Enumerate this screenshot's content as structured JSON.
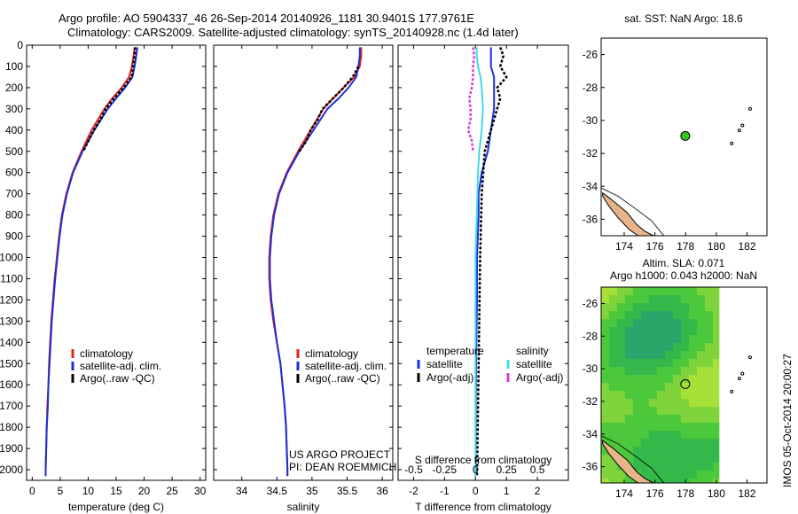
{
  "header": {
    "line1": "Argo profile: AO 5904337_46 26-Sep-2014 20140926_1181 30.9401S 177.9761E",
    "line2": "Climatology: CARS2009. Satellite-adjusted climatology: synTS_20140928.nc (1.4d later)"
  },
  "colors": {
    "climatology": "#e8231a",
    "satellite": "#1b2fd6",
    "argo": "#000000",
    "salinity_satellite": "#3fd9e6",
    "salinity_argo": "#d93ad9",
    "float_marker": "#35c41e",
    "land": "#e8b48a"
  },
  "chart_data": [
    {
      "id": "temperature",
      "type": "line",
      "xlabel": "temperature (deg C)",
      "ylim": [
        2050,
        0
      ],
      "xlim": [
        -1,
        31
      ],
      "xticks": [
        0,
        5,
        10,
        15,
        20,
        25,
        30
      ],
      "yticks": [
        0,
        100,
        200,
        300,
        400,
        500,
        600,
        700,
        800,
        900,
        1000,
        1100,
        1200,
        1300,
        1400,
        1500,
        1600,
        1700,
        1800,
        1900,
        2000
      ],
      "legend": [
        "climatology",
        "satellite-adj. clim.",
        "Argo(..raw -QC)"
      ],
      "series": [
        {
          "name": "climatology",
          "depth": [
            10,
            50,
            100,
            150,
            200,
            250,
            300,
            400,
            500,
            600,
            700,
            800,
            900,
            1000,
            1100,
            1200,
            1300,
            1400,
            1500,
            1600,
            1700,
            1800,
            1900,
            2000,
            2030
          ],
          "values": [
            18.3,
            18.1,
            17.8,
            17.3,
            16.0,
            14.3,
            12.9,
            10.6,
            8.8,
            7.2,
            6.1,
            5.3,
            4.8,
            4.4,
            4.0,
            3.7,
            3.4,
            3.2,
            3.0,
            2.9,
            2.7,
            2.6,
            2.5,
            2.4,
            2.4
          ]
        },
        {
          "name": "satellite-adj. clim.",
          "depth": [
            10,
            50,
            100,
            150,
            200,
            250,
            300,
            400,
            500,
            600,
            700,
            800,
            900,
            1000,
            1100,
            1200,
            1300,
            1400,
            1500,
            1600,
            1700,
            1800,
            1900,
            2000,
            2030
          ],
          "values": [
            18.8,
            18.6,
            18.3,
            17.9,
            16.6,
            15.0,
            13.5,
            11.1,
            9.0,
            7.3,
            6.2,
            5.4,
            4.9,
            4.5,
            4.1,
            3.8,
            3.5,
            3.3,
            3.1,
            2.9,
            2.8,
            2.6,
            2.5,
            2.4,
            2.4
          ]
        },
        {
          "name": "Argo(..raw -QC)",
          "depth": [
            10,
            50,
            100,
            150,
            200,
            250,
            300,
            350,
            400,
            500
          ],
          "values": [
            18.4,
            18.3,
            18.0,
            17.8,
            16.3,
            14.6,
            13.1,
            12.2,
            11.0,
            9.1
          ]
        }
      ]
    },
    {
      "id": "salinity",
      "type": "line",
      "xlabel": "salinity",
      "ylim": [
        2050,
        0
      ],
      "xlim": [
        33.6,
        36.15
      ],
      "xticks": [
        34,
        34.5,
        35,
        35.5,
        36
      ],
      "legend": [
        "climatology",
        "satellite-adj. clim.",
        "Argo(..raw -QC)"
      ],
      "annotation": [
        "US ARGO PROJECT",
        "PI: DEAN ROEMMICH"
      ],
      "series": [
        {
          "name": "climatology",
          "depth": [
            10,
            50,
            100,
            150,
            200,
            250,
            300,
            400,
            500,
            600,
            700,
            800,
            900,
            1000,
            1100,
            1200,
            1300,
            1400,
            1500,
            1600,
            1700,
            1800,
            1900,
            2000,
            2030
          ],
          "values": [
            35.7,
            35.7,
            35.68,
            35.6,
            35.45,
            35.3,
            35.16,
            34.98,
            34.8,
            34.64,
            34.52,
            34.45,
            34.41,
            34.39,
            34.39,
            34.41,
            34.45,
            34.5,
            34.55,
            34.58,
            34.61,
            34.63,
            34.64,
            34.65,
            34.65
          ]
        },
        {
          "name": "satellite-adj. clim.",
          "depth": [
            10,
            50,
            100,
            150,
            200,
            250,
            300,
            400,
            500,
            600,
            700,
            800,
            900,
            1000,
            1100,
            1200,
            1300,
            1400,
            1500,
            1600,
            1700,
            1800,
            1900,
            2000,
            2030
          ],
          "values": [
            35.68,
            35.68,
            35.66,
            35.63,
            35.52,
            35.38,
            35.22,
            35.02,
            34.82,
            34.65,
            34.53,
            34.46,
            34.42,
            34.4,
            34.4,
            34.42,
            34.46,
            34.5,
            34.55,
            34.58,
            34.61,
            34.63,
            34.64,
            34.65,
            34.65
          ]
        },
        {
          "name": "Argo(..raw -QC)",
          "depth": [
            100,
            150,
            200,
            250,
            300,
            350,
            400,
            450,
            500
          ],
          "values": [
            35.66,
            35.58,
            35.45,
            35.3,
            35.15,
            35.08,
            34.98,
            34.92,
            34.82
          ]
        }
      ]
    },
    {
      "id": "difference",
      "type": "line",
      "xlabel": "T difference from climatology",
      "xlabel_top": "S difference from climatology",
      "ylim": [
        2050,
        0
      ],
      "xlim": [
        -2.5,
        3
      ],
      "xticks": [
        -2,
        -1,
        0,
        1,
        2
      ],
      "xticks_top": [
        "-0.5",
        "-0.25",
        "0",
        "0.25",
        "0.5"
      ],
      "legend_temperature": {
        "title": "temperature",
        "items": [
          "satellite",
          "Argo(-adj)"
        ]
      },
      "legend_salinity": {
        "title": "salinity",
        "items": [
          "satellite",
          "Argo(-adj)"
        ]
      },
      "series": [
        {
          "name": "temperature satellite",
          "depth": [
            10,
            50,
            100,
            150,
            200,
            300,
            400,
            500,
            600,
            700,
            800,
            1000,
            1200,
            1500,
            2030
          ],
          "values": [
            0.5,
            0.5,
            0.5,
            0.6,
            0.6,
            0.6,
            0.5,
            0.4,
            0.2,
            0.1,
            0.1,
            0.05,
            0.05,
            0.02,
            0.0
          ]
        },
        {
          "name": "temperature Argo(-adj)",
          "depth": [
            10,
            50,
            100,
            150,
            200,
            250,
            300,
            350,
            400,
            500,
            700,
            1000,
            1500,
            2030
          ],
          "values": [
            0.8,
            0.9,
            0.8,
            1.0,
            0.7,
            0.8,
            0.7,
            0.6,
            0.5,
            0.3,
            0.2,
            0.15,
            0.1,
            0.05
          ]
        },
        {
          "name": "salinity satellite",
          "depth": [
            10,
            50,
            100,
            150,
            200,
            300,
            400,
            500,
            600,
            800,
            1000,
            1500,
            2030
          ],
          "values": [
            0.01,
            0.01,
            0.02,
            0.04,
            0.05,
            0.06,
            0.05,
            0.03,
            0.02,
            0.01,
            0.0,
            0.0,
            0.0
          ]
        },
        {
          "name": "salinity Argo(-adj)",
          "depth": [
            10,
            50,
            100,
            150,
            200,
            250,
            300,
            350,
            400,
            450,
            500
          ],
          "values": [
            -0.02,
            -0.01,
            -0.02,
            -0.02,
            -0.03,
            -0.05,
            -0.04,
            -0.04,
            -0.06,
            -0.03,
            -0.02
          ]
        }
      ]
    },
    {
      "id": "sst_map",
      "type": "scatter",
      "title": "sat. SST: NaN Argo: 18.6",
      "xlim": [
        172.5,
        183.3
      ],
      "ylim": [
        -37,
        -25
      ],
      "xticks": [
        174,
        176,
        178,
        180,
        182
      ],
      "yticks": [
        -26,
        -28,
        -30,
        -32,
        -34,
        -36
      ],
      "float_position": {
        "lon": 177.98,
        "lat": -30.94
      }
    },
    {
      "id": "sla_map",
      "type": "heatmap",
      "title_line1": "Altim. SLA: 0.071",
      "title_line2": "Argo h1000: 0.043 h2000: NaN",
      "xlim": [
        172.5,
        183.3
      ],
      "ylim": [
        -37,
        -25
      ],
      "xticks": [
        174,
        176,
        178,
        180,
        182
      ],
      "yticks": [
        -26,
        -28,
        -30,
        -32,
        -34,
        -36
      ],
      "float_position": {
        "lon": 177.98,
        "lat": -30.94
      }
    }
  ],
  "side_label": "IMOS 05-Oct-2014 20:00:27"
}
